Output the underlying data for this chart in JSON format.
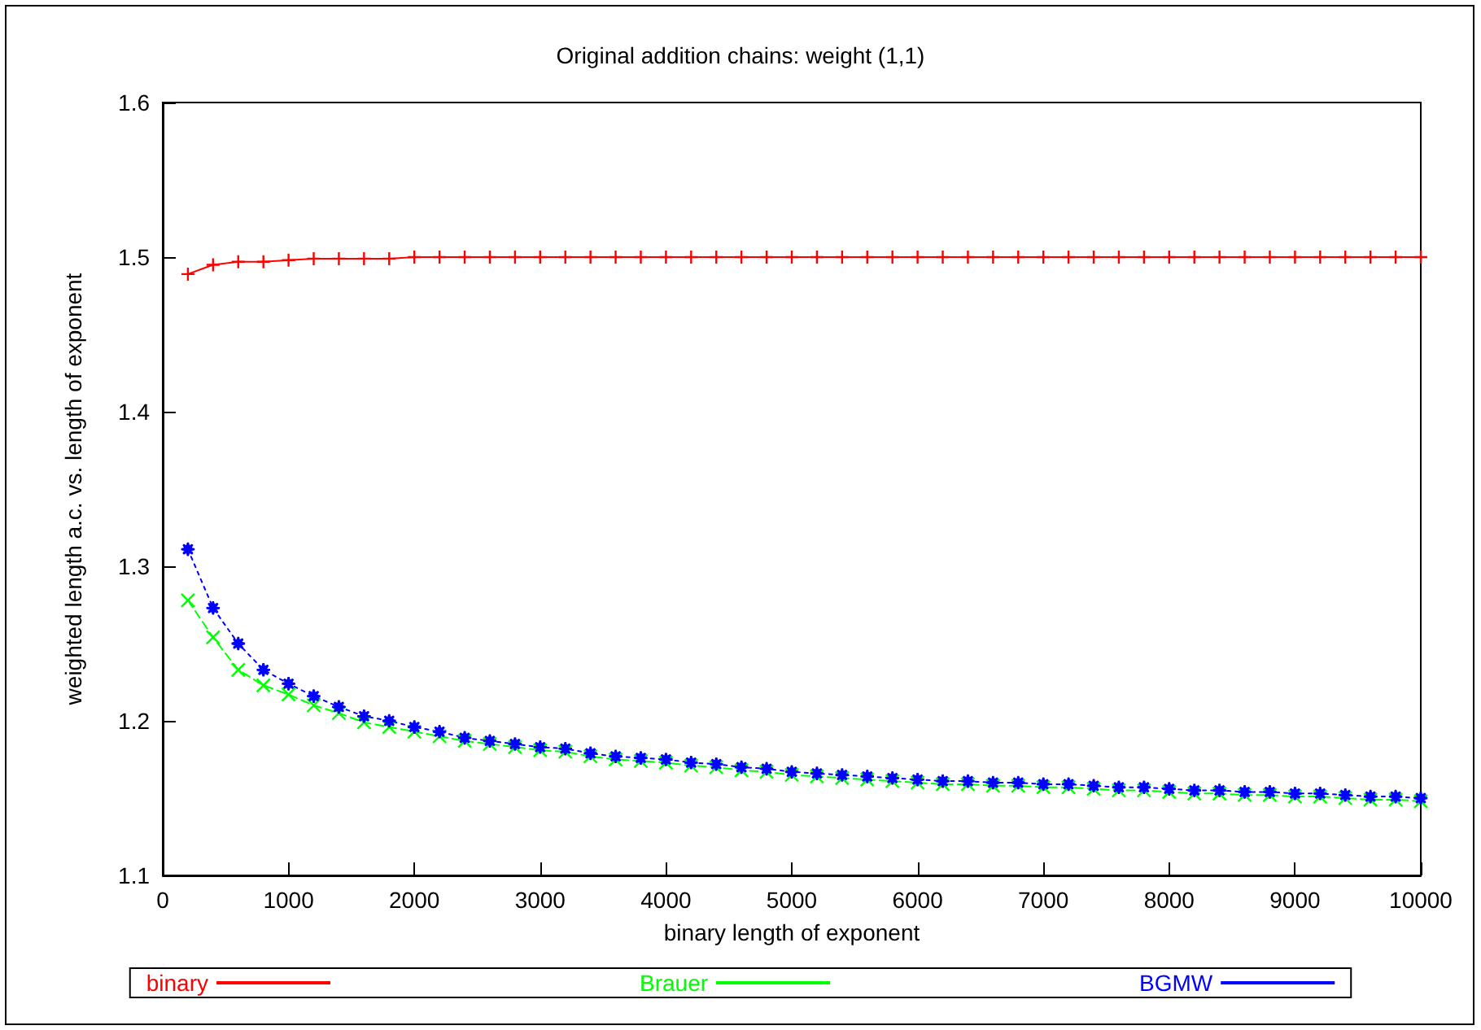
{
  "chart_data": {
    "type": "line",
    "title": "Original addition chains: weight (1,1)",
    "xlabel": "binary length of exponent",
    "ylabel": "weighted length a.c. vs. length of exponent",
    "x": [
      200,
      400,
      600,
      800,
      1000,
      1200,
      1400,
      1600,
      1800,
      2000,
      2200,
      2400,
      2600,
      2800,
      3000,
      3200,
      3400,
      3600,
      3800,
      4000,
      4200,
      4400,
      4600,
      4800,
      5000,
      5200,
      5400,
      5600,
      5800,
      6000,
      6200,
      6400,
      6600,
      6800,
      7000,
      7200,
      7400,
      7600,
      7800,
      8000,
      8200,
      8400,
      8600,
      8800,
      9000,
      9200,
      9400,
      9600,
      9800,
      10000
    ],
    "series": [
      {
        "name": "binary",
        "color": "#ff0000",
        "marker": "cross",
        "line_style": "solid",
        "values": [
          1.489,
          1.495,
          1.497,
          1.497,
          1.498,
          1.499,
          1.499,
          1.499,
          1.499,
          1.5,
          1.5,
          1.5,
          1.5,
          1.5,
          1.5,
          1.5,
          1.5,
          1.5,
          1.5,
          1.5,
          1.5,
          1.5,
          1.5,
          1.5,
          1.5,
          1.5,
          1.5,
          1.5,
          1.5,
          1.5,
          1.5,
          1.5,
          1.5,
          1.5,
          1.5,
          1.5,
          1.5,
          1.5,
          1.5,
          1.5,
          1.5,
          1.5,
          1.5,
          1.5,
          1.5,
          1.5,
          1.5,
          1.5,
          1.5,
          1.5
        ]
      },
      {
        "name": "Brauer",
        "color": "#00ff00",
        "marker": "x",
        "line_style": "dashed",
        "values": [
          1.278,
          1.254,
          1.233,
          1.223,
          1.217,
          1.21,
          1.205,
          1.199,
          1.196,
          1.193,
          1.19,
          1.187,
          1.185,
          1.183,
          1.181,
          1.18,
          1.177,
          1.175,
          1.174,
          1.173,
          1.171,
          1.17,
          1.168,
          1.167,
          1.165,
          1.164,
          1.163,
          1.162,
          1.161,
          1.16,
          1.159,
          1.159,
          1.158,
          1.158,
          1.157,
          1.157,
          1.156,
          1.155,
          1.155,
          1.154,
          1.153,
          1.153,
          1.152,
          1.152,
          1.151,
          1.151,
          1.15,
          1.149,
          1.149,
          1.148
        ]
      },
      {
        "name": "BGMW",
        "color": "#0000ff",
        "marker": "star",
        "line_style": "dotted",
        "values": [
          1.311,
          1.273,
          1.25,
          1.233,
          1.224,
          1.216,
          1.209,
          1.203,
          1.2,
          1.196,
          1.193,
          1.189,
          1.187,
          1.185,
          1.183,
          1.182,
          1.179,
          1.177,
          1.176,
          1.175,
          1.173,
          1.172,
          1.17,
          1.169,
          1.167,
          1.166,
          1.165,
          1.164,
          1.163,
          1.162,
          1.161,
          1.161,
          1.16,
          1.16,
          1.159,
          1.159,
          1.158,
          1.157,
          1.157,
          1.156,
          1.155,
          1.155,
          1.154,
          1.154,
          1.153,
          1.153,
          1.152,
          1.151,
          1.151,
          1.15
        ]
      }
    ],
    "xlim": [
      0,
      10000
    ],
    "xticks": [
      0,
      1000,
      2000,
      3000,
      4000,
      5000,
      6000,
      7000,
      8000,
      9000,
      10000
    ],
    "ylim": [
      1.1,
      1.6
    ],
    "yticks": [
      1.1,
      1.2,
      1.3,
      1.4,
      1.5,
      1.6
    ],
    "grid": false,
    "legend": "bottom"
  }
}
